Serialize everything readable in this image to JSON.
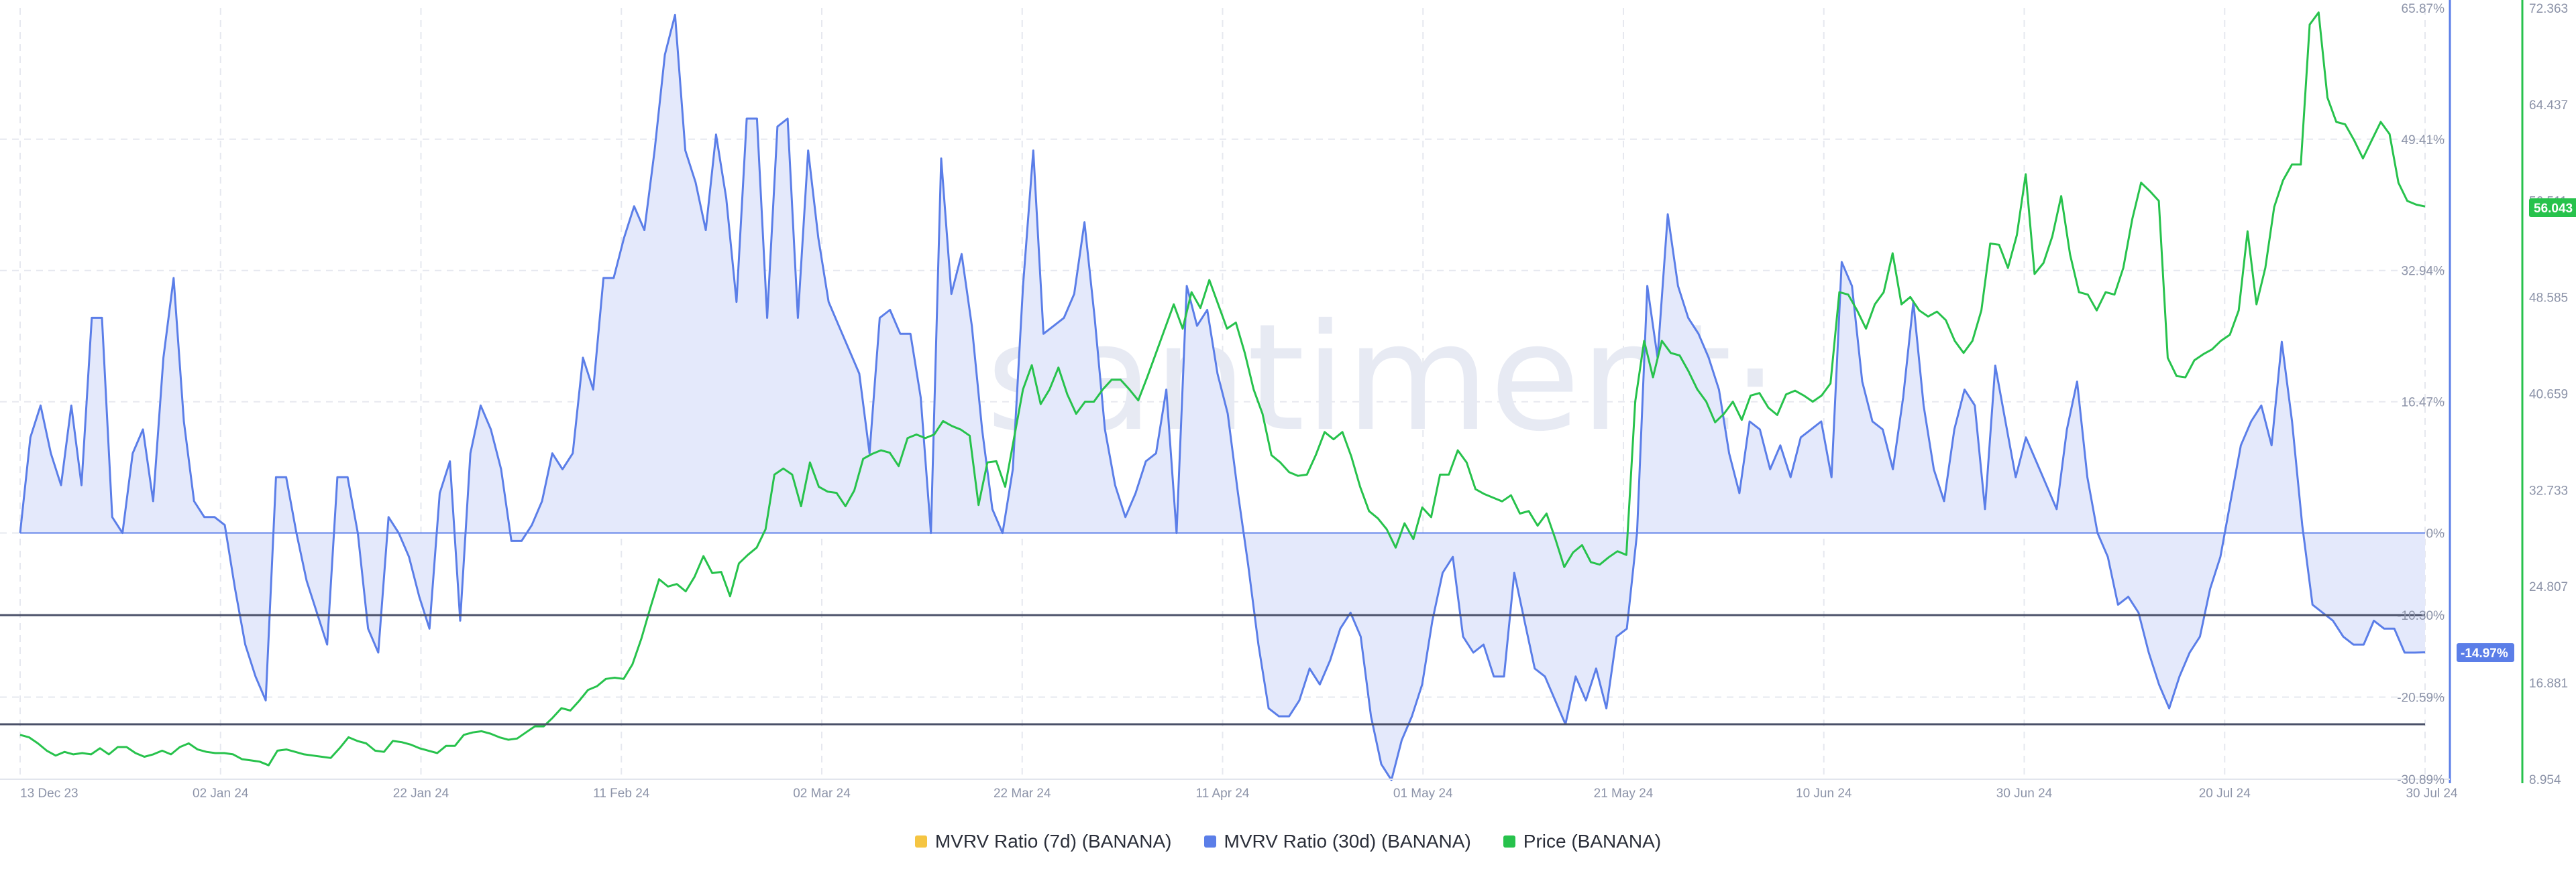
{
  "watermark": "·santiment·",
  "colors": {
    "mvrv7d": "#f5c542",
    "mvrv30d": "#5b7ee8",
    "mvrv30d_fill": "#e4e9fb",
    "price": "#27c24c",
    "grid": "#e6e8ef",
    "axis_line_left": "#5b7ee8",
    "axis_line_right": "#27c24c",
    "threshold_line": "#4a5068"
  },
  "legend": {
    "items": [
      {
        "label": "MVRV Ratio (7d) (BANANA)",
        "color": "#f5c542"
      },
      {
        "label": "MVRV Ratio (30d) (BANANA)",
        "color": "#5b7ee8"
      },
      {
        "label": "Price (BANANA)",
        "color": "#27c24c"
      }
    ]
  },
  "badges": {
    "price_last": "56.043",
    "mvrv_last": "-14.97%"
  },
  "chart_data": {
    "type": "line",
    "x_tick_labels": [
      "13 Dec 23",
      "02 Jan 24",
      "22 Jan 24",
      "11 Feb 24",
      "02 Mar 24",
      "22 Mar 24",
      "11 Apr 24",
      "01 May 24",
      "21 May 24",
      "10 Jun 24",
      "30 Jun 24",
      "20 Jul 24",
      "30 Jul 24"
    ],
    "left_axis": {
      "label": "",
      "tick_labels": [
        "65.87%",
        "49.41%",
        "32.94%",
        "16.47%",
        "0%",
        "-10.30%",
        "-20.59%",
        "-30.89%"
      ],
      "range": [
        -30.89,
        65.87
      ]
    },
    "right_axis": {
      "label": "",
      "tick_labels": [
        "72.363",
        "64.437",
        "56.511",
        "48.585",
        "40.659",
        "32.733",
        "24.807",
        "16.881",
        "8.954"
      ],
      "range": [
        8.954,
        72.363
      ]
    },
    "horizontal_lines": [
      -10.3,
      -24.0
    ],
    "series": [
      {
        "name": "MVRV Ratio (30d) (BANANA)",
        "axis": "left",
        "values": [
          0,
          12,
          16,
          10,
          6,
          16,
          6,
          27,
          27,
          2,
          0,
          10,
          13,
          4,
          22,
          32,
          14,
          4,
          2,
          2,
          1,
          -7,
          -14,
          -18,
          -21,
          7,
          7,
          0,
          -6,
          -10,
          -14,
          7,
          7,
          0,
          -12,
          -15,
          2,
          0,
          -3,
          -8,
          -12,
          5,
          9,
          -11,
          10,
          16,
          13,
          8,
          -1,
          -1,
          1,
          4,
          10,
          8,
          10,
          22,
          18,
          32,
          32,
          37,
          41,
          38,
          48,
          60,
          65,
          48,
          44,
          38,
          50,
          42,
          29,
          52,
          52,
          27,
          51,
          52,
          27,
          48,
          37,
          29,
          26,
          23,
          20,
          10,
          27,
          28,
          25,
          25,
          17,
          0,
          47,
          30,
          35,
          26,
          13,
          3,
          0,
          8,
          31,
          48,
          25,
          26,
          27,
          30,
          39,
          27,
          13,
          6,
          2,
          5,
          9,
          10,
          18,
          0,
          31,
          26,
          28,
          20,
          15,
          5,
          -4,
          -14,
          -22,
          -23,
          -23,
          -21,
          -17,
          -19,
          -16,
          -12,
          -10,
          -13,
          -23,
          -29,
          -31,
          -26,
          -23,
          -19,
          -11,
          -5,
          -3,
          -13,
          -15,
          -14,
          -18,
          -18,
          -5,
          -11,
          -17,
          -18,
          -21,
          -24,
          -18,
          -21,
          -17,
          -22,
          -13,
          -12,
          0,
          31,
          22,
          40,
          31,
          27,
          25,
          22,
          18,
          10,
          5,
          14,
          13,
          8,
          11,
          7,
          12,
          13,
          14,
          7,
          34,
          31,
          19,
          14,
          13,
          8,
          17,
          29,
          16,
          8,
          4,
          13,
          18,
          16,
          3,
          21,
          14,
          7,
          12,
          9,
          6,
          3,
          13,
          19,
          7,
          0,
          -3,
          -9,
          -8,
          -10,
          -15,
          -19,
          -22,
          -18,
          -15,
          -13,
          -7,
          -3,
          4,
          11,
          14,
          16,
          11,
          24,
          14,
          1,
          -9,
          -10,
          -11,
          -13,
          -14,
          -14,
          -11,
          -12,
          -12,
          -15,
          -15,
          -14.97
        ]
      },
      {
        "name": "Price (BANANA)",
        "axis": "right",
        "values": [
          12.6,
          12.4,
          11.9,
          11.3,
          10.9,
          11.2,
          11.0,
          11.1,
          11.0,
          11.5,
          11.0,
          11.6,
          11.6,
          11.1,
          10.8,
          11.0,
          11.3,
          11.0,
          11.6,
          11.9,
          11.4,
          11.2,
          11.1,
          11.1,
          11.0,
          10.6,
          10.5,
          10.4,
          10.1,
          11.3,
          11.4,
          11.2,
          11.0,
          10.9,
          10.8,
          10.7,
          11.5,
          12.4,
          12.1,
          11.9,
          11.3,
          11.2,
          12.1,
          12.0,
          11.8,
          11.5,
          11.3,
          11.1,
          11.7,
          11.7,
          12.6,
          12.8,
          12.9,
          12.7,
          12.4,
          12.2,
          12.3,
          12.8,
          13.3,
          13.3,
          14.0,
          14.8,
          14.6,
          15.4,
          16.3,
          16.6,
          17.2,
          17.3,
          17.2,
          18.4,
          20.5,
          23.0,
          25.4,
          24.8,
          25.0,
          24.4,
          25.6,
          27.3,
          25.9,
          26.0,
          24.0,
          26.7,
          27.4,
          28.0,
          29.5,
          34.0,
          34.5,
          34.0,
          31.4,
          35.0,
          33.0,
          32.6,
          32.5,
          31.4,
          32.7,
          35.3,
          35.7,
          36.0,
          35.8,
          34.7,
          37.0,
          37.3,
          37.0,
          37.3,
          38.4,
          38.0,
          37.7,
          37.2,
          31.5,
          35.0,
          35.1,
          33.0,
          37.0,
          41.0,
          43.0,
          39.8,
          41.0,
          42.8,
          40.6,
          39.0,
          40.0,
          40.0,
          41.0,
          41.8,
          41.8,
          41.0,
          40.1,
          42.0,
          44.0,
          46.0,
          48.0,
          46.0,
          49.0,
          47.7,
          50.0,
          48.0,
          46.0,
          46.5,
          44.0,
          41.0,
          39.0,
          35.6,
          35.0,
          34.2,
          33.9,
          34.0,
          35.6,
          37.5,
          36.9,
          37.5,
          35.5,
          33.0,
          31.0,
          30.4,
          29.5,
          28.0,
          30.0,
          28.7,
          31.3,
          30.5,
          34.0,
          34.0,
          36.0,
          35.0,
          32.8,
          32.4,
          32.1,
          31.8,
          32.3,
          30.8,
          31.0,
          29.8,
          30.8,
          28.7,
          26.4,
          27.6,
          28.2,
          26.8,
          26.6,
          27.2,
          27.7,
          27.4,
          40.0,
          45.0,
          42.0,
          45.0,
          44.0,
          43.8,
          42.5,
          41.0,
          40.0,
          38.3,
          39.0,
          40.0,
          38.5,
          40.5,
          40.7,
          39.5,
          38.9,
          40.6,
          40.9,
          40.5,
          40.0,
          40.5,
          41.5,
          49.0,
          48.8,
          47.5,
          46.0,
          48.0,
          49.0,
          52.2,
          48.0,
          48.6,
          47.5,
          47.0,
          47.4,
          46.7,
          45.0,
          44.0,
          45.0,
          47.5,
          53.0,
          52.9,
          51.0,
          53.7,
          58.7,
          50.5,
          51.4,
          53.6,
          56.9,
          52.1,
          49.0,
          48.8,
          47.5,
          49.0,
          48.8,
          51.0,
          55.0,
          58.0,
          57.3,
          56.5,
          43.6,
          42.1,
          42.0,
          43.4,
          43.9,
          44.3,
          45.0,
          45.5,
          47.5,
          54.0,
          48.0,
          51.0,
          56.0,
          58.2,
          59.5,
          59.5,
          71.0,
          72.0,
          65.0,
          63.0,
          62.8,
          61.5,
          60.0,
          61.5,
          63.0,
          62.0,
          58.0,
          56.5,
          56.2,
          56.043
        ]
      }
    ],
    "grid": true,
    "legend_position": "bottom"
  }
}
